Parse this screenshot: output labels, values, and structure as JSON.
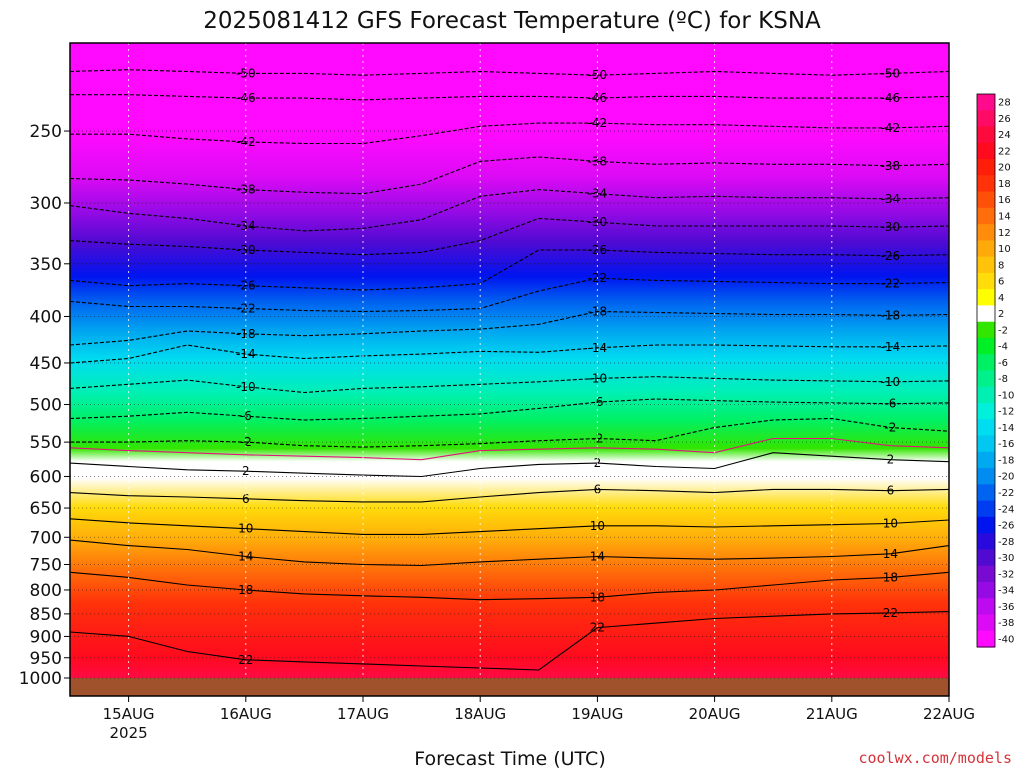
{
  "chart_data": {
    "type": "heatmap",
    "title": "2025081412 GFS Forecast Temperature (ºC) for KSNA",
    "xlabel": "Forecast Time (UTC)",
    "ylabel": "",
    "credit": "coolwx.com/models",
    "x_ticks": [
      {
        "label": "15AUG",
        "sub": "2025",
        "day": 15
      },
      {
        "label": "16AUG",
        "sub": "",
        "day": 16
      },
      {
        "label": "17AUG",
        "sub": "",
        "day": 17
      },
      {
        "label": "18AUG",
        "sub": "",
        "day": 18
      },
      {
        "label": "19AUG",
        "sub": "",
        "day": 19
      },
      {
        "label": "20AUG",
        "sub": "",
        "day": 20
      },
      {
        "label": "21AUG",
        "sub": "",
        "day": 21
      },
      {
        "label": "22AUG",
        "sub": "",
        "day": 22
      }
    ],
    "xlim_days": [
      14.5,
      22.0
    ],
    "y_ticks": [
      "250",
      "300",
      "350",
      "400",
      "450",
      "500",
      "550",
      "600",
      "650",
      "700",
      "750",
      "800",
      "850",
      "900",
      "950",
      "1000"
    ],
    "y_tick_values": [
      250,
      300,
      350,
      400,
      450,
      500,
      550,
      600,
      650,
      700,
      750,
      800,
      850,
      900,
      950,
      1000
    ],
    "ylim_hpa": [
      200,
      1000
    ],
    "y_scale": "log (pressure)",
    "grid": "dotted vertical lines at 00Z, dotted horizontal lines at pressure levels",
    "colorbar": {
      "labels": [
        "28",
        "26",
        "24",
        "22",
        "20",
        "18",
        "16",
        "14",
        "12",
        "10",
        "8",
        "6",
        "4",
        "2",
        "-2",
        "-4",
        "-6",
        "-8",
        "-10",
        "-12",
        "-14",
        "-16",
        "-18",
        "-20",
        "-22",
        "-24",
        "-26",
        "-28",
        "-30",
        "-32",
        "-34",
        "-36",
        "-38",
        "-40"
      ],
      "colors": [
        "#ff0a8c",
        "#ff0a64",
        "#ff0a3c",
        "#ff0a1e",
        "#ff1e0a",
        "#ff320a",
        "#ff500a",
        "#ff6e0a",
        "#ff8c0a",
        "#ffaa0a",
        "#ffc30a",
        "#ffdc0a",
        "#ffff00",
        "#ffffff",
        "#32e600",
        "#00f028",
        "#00f064",
        "#00f08c",
        "#00f0b4",
        "#00f0dc",
        "#00dcf0",
        "#00c8f0",
        "#00aaf0",
        "#008cf0",
        "#0064f0",
        "#003cf0",
        "#0014f0",
        "#280adc",
        "#500ad2",
        "#780ad2",
        "#960ae6",
        "#be0af0",
        "#dc0af5",
        "#ff0aff"
      ],
      "placement": "right"
    },
    "isotherms": [
      {
        "value": -50,
        "style": "dashed",
        "label": "-50",
        "p": [
          215,
          214,
          215,
          216,
          216,
          217,
          216,
          215,
          216,
          217,
          216,
          215,
          216,
          217,
          216,
          215
        ]
      },
      {
        "value": -46,
        "style": "dashed",
        "label": "-46",
        "p": [
          228,
          228,
          229,
          230,
          230,
          231,
          230,
          229,
          229,
          230,
          229,
          229,
          230,
          230,
          230,
          229
        ]
      },
      {
        "value": -42,
        "style": "dashed",
        "label": "-42",
        "p": [
          252,
          252,
          255,
          257,
          258,
          258,
          253,
          247,
          245,
          245,
          246,
          246,
          247,
          248,
          248,
          247
        ]
      },
      {
        "value": -38,
        "style": "dashed",
        "label": "-38",
        "p": [
          282,
          283,
          286,
          290,
          292,
          293,
          286,
          270,
          267,
          270,
          272,
          271,
          272,
          272,
          273,
          272
        ]
      },
      {
        "value": -34,
        "style": "dashed",
        "label": "-34",
        "p": [
          302,
          308,
          312,
          318,
          322,
          320,
          313,
          295,
          290,
          293,
          296,
          295,
          296,
          296,
          297,
          296
        ]
      },
      {
        "value": -30,
        "style": "dashed",
        "label": "-30",
        "p": [
          330,
          333,
          335,
          338,
          340,
          342,
          340,
          330,
          312,
          315,
          318,
          318,
          318,
          318,
          319,
          318
        ]
      },
      {
        "value": -26,
        "style": "dashed",
        "label": "-26",
        "p": [
          365,
          370,
          368,
          370,
          372,
          374,
          372,
          368,
          338,
          338,
          340,
          341,
          342,
          342,
          343,
          342
        ]
      },
      {
        "value": -22,
        "style": "dashed",
        "label": "-22",
        "p": [
          385,
          390,
          390,
          392,
          394,
          395,
          394,
          392,
          375,
          363,
          365,
          366,
          367,
          368,
          368,
          367
        ]
      },
      {
        "value": -18,
        "style": "dashed",
        "label": "-18",
        "p": [
          430,
          425,
          415,
          418,
          420,
          418,
          415,
          413,
          408,
          395,
          396,
          397,
          398,
          398,
          399,
          398
        ]
      },
      {
        "value": -14,
        "style": "dashed",
        "label": "-14",
        "p": [
          450,
          445,
          430,
          440,
          445,
          442,
          440,
          437,
          438,
          433,
          430,
          430,
          431,
          432,
          432,
          431
        ]
      },
      {
        "value": -10,
        "style": "dashed",
        "label": "-10",
        "p": [
          480,
          475,
          470,
          478,
          485,
          480,
          478,
          475,
          472,
          468,
          466,
          468,
          470,
          471,
          472,
          471
        ]
      },
      {
        "value": -6,
        "style": "dashed",
        "label": "-6",
        "p": [
          518,
          515,
          510,
          515,
          520,
          518,
          515,
          512,
          505,
          497,
          493,
          495,
          497,
          498,
          499,
          498
        ]
      },
      {
        "value": -2,
        "style": "dashed",
        "label": "-2",
        "p": [
          550,
          550,
          548,
          550,
          555,
          557,
          555,
          552,
          548,
          545,
          548,
          530,
          520,
          518,
          530,
          535
        ]
      },
      {
        "value": 0,
        "style": "solid-magenta",
        "label": "",
        "p": [
          558,
          562,
          565,
          568,
          570,
          572,
          575,
          562,
          560,
          558,
          560,
          565,
          545,
          545,
          555,
          558
        ]
      },
      {
        "value": 2,
        "style": "solid",
        "label": "2",
        "p": [
          580,
          585,
          590,
          592,
          595,
          598,
          600,
          588,
          582,
          580,
          585,
          588,
          565,
          570,
          575,
          578
        ]
      },
      {
        "value": 6,
        "style": "solid",
        "label": "6",
        "p": [
          625,
          630,
          632,
          635,
          638,
          640,
          640,
          632,
          625,
          620,
          622,
          625,
          620,
          620,
          622,
          620
        ]
      },
      {
        "value": 10,
        "style": "solid",
        "label": "10",
        "p": [
          668,
          675,
          680,
          685,
          690,
          695,
          695,
          690,
          685,
          680,
          680,
          682,
          680,
          678,
          676,
          670
        ]
      },
      {
        "value": 14,
        "style": "solid",
        "label": "14",
        "p": [
          705,
          715,
          722,
          735,
          745,
          750,
          752,
          745,
          740,
          735,
          738,
          740,
          738,
          735,
          730,
          715
        ]
      },
      {
        "value": 18,
        "style": "solid",
        "label": "18",
        "p": [
          765,
          775,
          790,
          800,
          808,
          812,
          815,
          820,
          818,
          815,
          805,
          800,
          790,
          780,
          775,
          765
        ]
      },
      {
        "value": 22,
        "style": "solid",
        "label": "22",
        "p": [
          890,
          900,
          935,
          955,
          960,
          965,
          970,
          975,
          980,
          880,
          870,
          860,
          855,
          850,
          848,
          845
        ]
      }
    ],
    "isotherm_x_days": [
      14.5,
      15.0,
      15.5,
      16.0,
      16.5,
      17.0,
      17.5,
      18.0,
      18.5,
      19.0,
      19.5,
      20.0,
      20.5,
      21.0,
      21.5,
      22.0
    ]
  }
}
